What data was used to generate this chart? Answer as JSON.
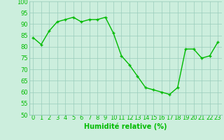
{
  "x": [
    0,
    1,
    2,
    3,
    4,
    5,
    6,
    7,
    8,
    9,
    10,
    11,
    12,
    13,
    14,
    15,
    16,
    17,
    18,
    19,
    20,
    21,
    22,
    23
  ],
  "y": [
    84,
    81,
    87,
    91,
    92,
    93,
    91,
    92,
    92,
    93,
    86,
    76,
    72,
    67,
    62,
    61,
    60,
    59,
    62,
    79,
    79,
    75,
    76,
    82
  ],
  "line_color": "#00BB00",
  "marker": "+",
  "marker_color": "#00BB00",
  "bg_color": "#CCEEDD",
  "grid_color": "#99CCBB",
  "xlabel": "Humidité relative (%)",
  "xlabel_color": "#00BB00",
  "xlabel_fontsize": 7,
  "tick_color": "#00BB00",
  "tick_fontsize": 6,
  "ylim": [
    50,
    100
  ],
  "yticks": [
    50,
    55,
    60,
    65,
    70,
    75,
    80,
    85,
    90,
    95,
    100
  ],
  "xticks": [
    0,
    1,
    2,
    3,
    4,
    5,
    6,
    7,
    8,
    9,
    10,
    11,
    12,
    13,
    14,
    15,
    16,
    17,
    18,
    19,
    20,
    21,
    22,
    23
  ],
  "line_width": 1.0,
  "marker_size": 3
}
